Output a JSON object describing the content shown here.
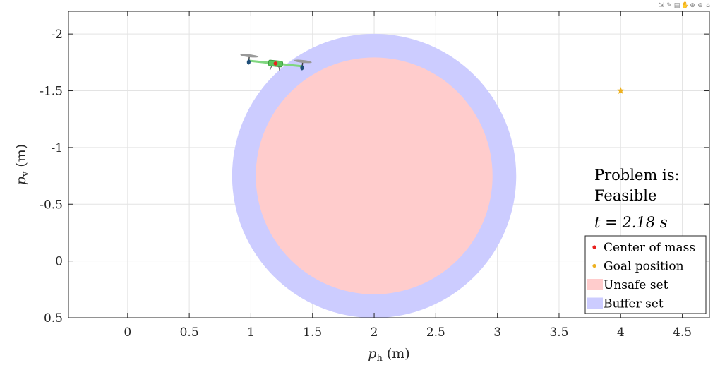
{
  "toolbar": {
    "icons": [
      "export-icon",
      "brush-icon",
      "datatip-icon",
      "pan-icon",
      "zoom-in-icon",
      "zoom-out-icon",
      "home-icon"
    ],
    "glyphs": [
      "⇲",
      "✎",
      "▤",
      "✋",
      "⊕",
      "⊖",
      "⌂"
    ]
  },
  "chart_data": {
    "type": "scatter",
    "xlabel_main": "p",
    "xlabel_sub": "h",
    "xlabel_unit": "(m)",
    "ylabel_main": "p",
    "ylabel_sub": "v",
    "ylabel_unit": "(m)",
    "xlim": [
      -0.48,
      4.72
    ],
    "ylim": [
      -2.2,
      0.5
    ],
    "y_reversed": true,
    "grid": true,
    "xticks": [
      0,
      0.5,
      1,
      1.5,
      2,
      2.5,
      3,
      3.5,
      4,
      4.5
    ],
    "xtick_labels": [
      "0",
      "0.5",
      "1",
      "1.5",
      "2",
      "2.5",
      "3",
      "3.5",
      "4",
      "4.5"
    ],
    "yticks": [
      -2,
      -1.5,
      -1,
      -0.5,
      0,
      0.5
    ],
    "ytick_labels": [
      "-2",
      "-1.5",
      "-1",
      "-0.5",
      "0",
      "0.5"
    ],
    "unsafe_set": {
      "center": [
        2,
        -0.75
      ],
      "radius": 1.0,
      "color": "#ffcccc"
    },
    "buffer_set": {
      "center": [
        2,
        -0.75
      ],
      "radius": 1.2,
      "color": "#ccccff"
    },
    "center_of_mass": {
      "x": 1.2,
      "y": -1.74,
      "color": "#e8201e"
    },
    "goal_position": {
      "x": 4,
      "y": -1.5,
      "color": "#edb120"
    },
    "drone": {
      "x": 1.2,
      "y": -1.74,
      "angle_deg": 6
    },
    "annotations": {
      "problem_label": "Problem is:",
      "status": "Feasible",
      "status_color": "#0000ff",
      "time_text": "t = 2.18 s"
    },
    "legend": {
      "placement": "bottom-right",
      "entries": [
        {
          "label": "Center of mass",
          "kind": "dot",
          "color": "#e8201e"
        },
        {
          "label": "Goal position",
          "kind": "dot",
          "color": "#edb120"
        },
        {
          "label": "Unsafe set",
          "kind": "patch",
          "color": "#ffcccc"
        },
        {
          "label": "Buffer set",
          "kind": "patch",
          "color": "#ccccff"
        }
      ]
    }
  }
}
